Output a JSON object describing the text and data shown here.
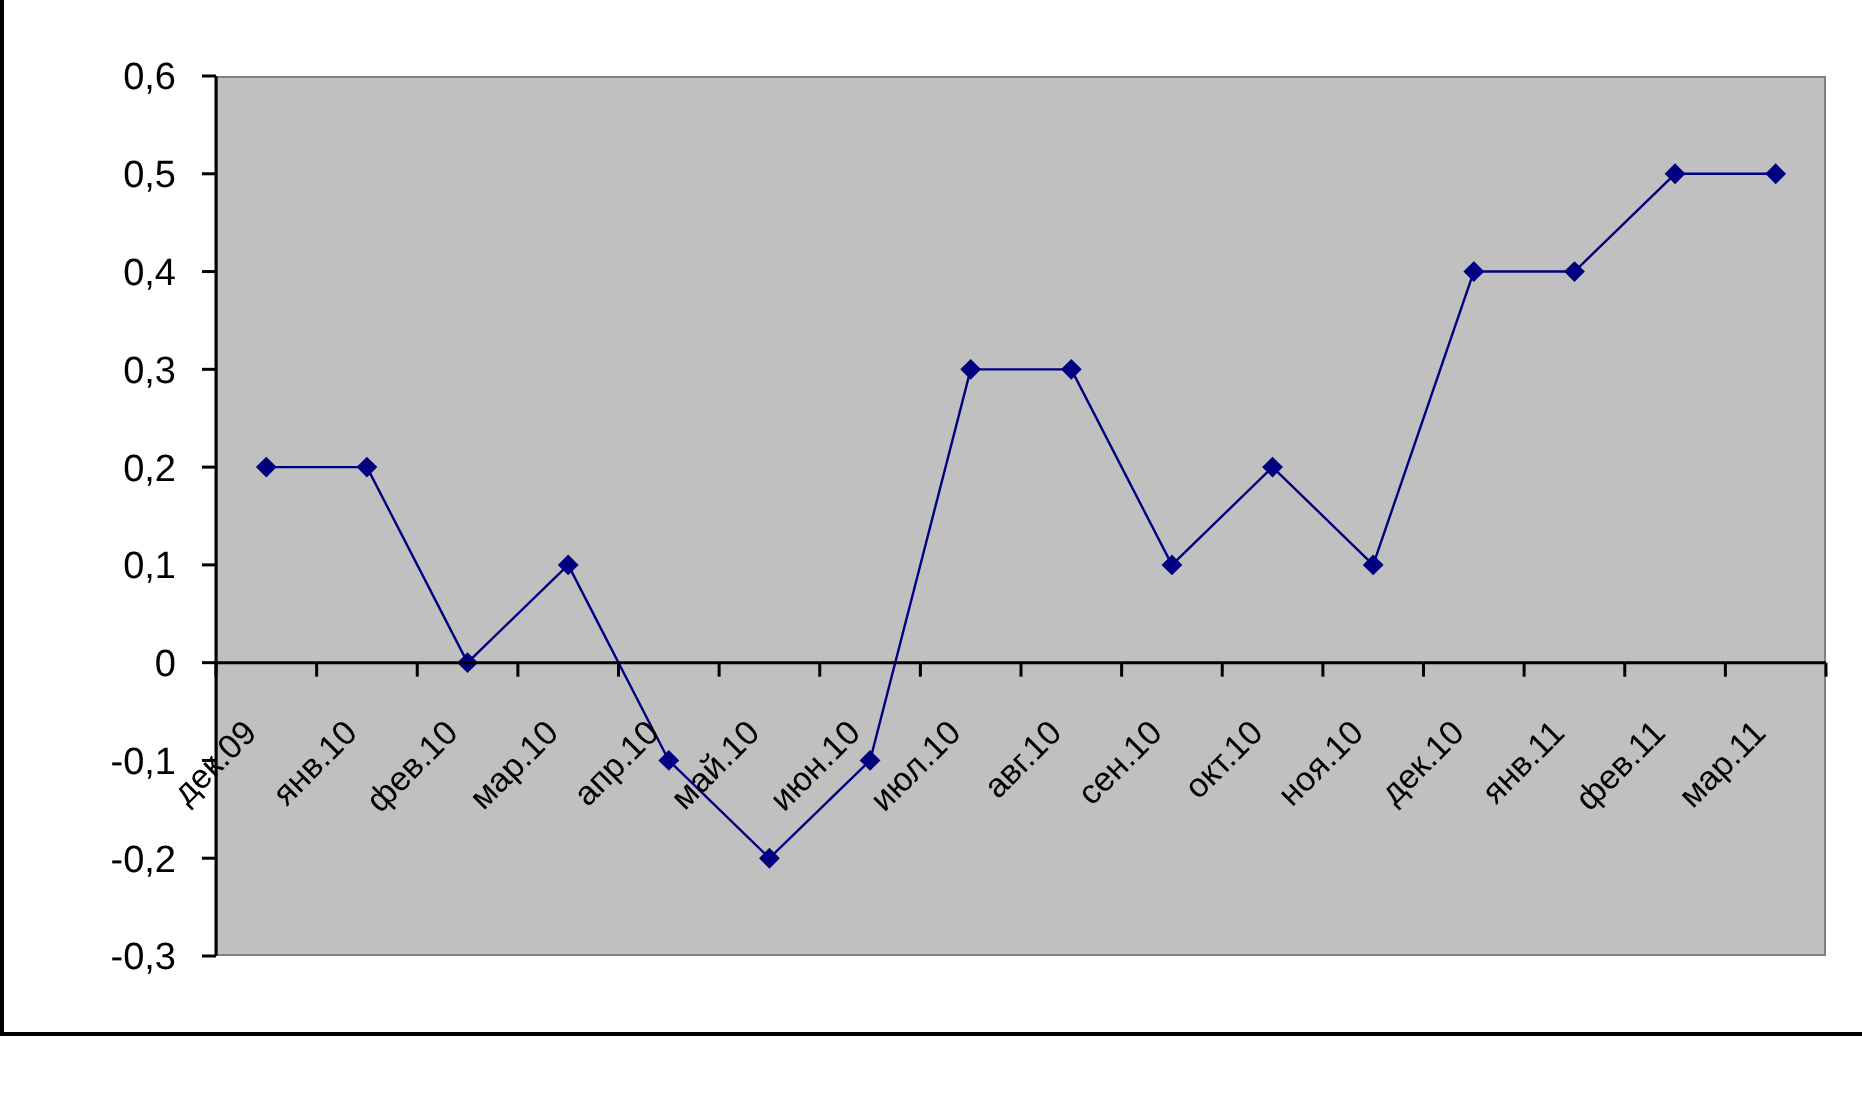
{
  "chart_data": {
    "type": "line",
    "categories": [
      "дек.09",
      "янв.10",
      "фев.10",
      "мар.10",
      "апр.10",
      "май.10",
      "июн.10",
      "июл.10",
      "авг.10",
      "сен.10",
      "окт.10",
      "ноя.10",
      "дек.10",
      "янв.11",
      "фев.11",
      "мар.11"
    ],
    "values": [
      0.2,
      0.2,
      0,
      0.1,
      -0.1,
      -0.2,
      -0.1,
      0.3,
      0.3,
      0.1,
      0.2,
      0.1,
      0.4,
      0.4,
      0.5,
      0.5
    ],
    "color": "#000080",
    "ylim": [
      -0.3,
      0.6
    ],
    "yticks": [
      {
        "value": -0.3,
        "label": "-0,3"
      },
      {
        "value": -0.2,
        "label": "-0,2"
      },
      {
        "value": -0.1,
        "label": "-0,1"
      },
      0,
      {
        "value": 0.1,
        "label": "0,1"
      },
      {
        "value": 0.2,
        "label": "0,2"
      },
      {
        "value": 0.3,
        "label": "0,3"
      },
      {
        "value": 0.4,
        "label": "0,4"
      },
      {
        "value": 0.5,
        "label": "0,5"
      },
      {
        "value": 0.6,
        "label": "0,6"
      }
    ],
    "marker": "diamond"
  }
}
